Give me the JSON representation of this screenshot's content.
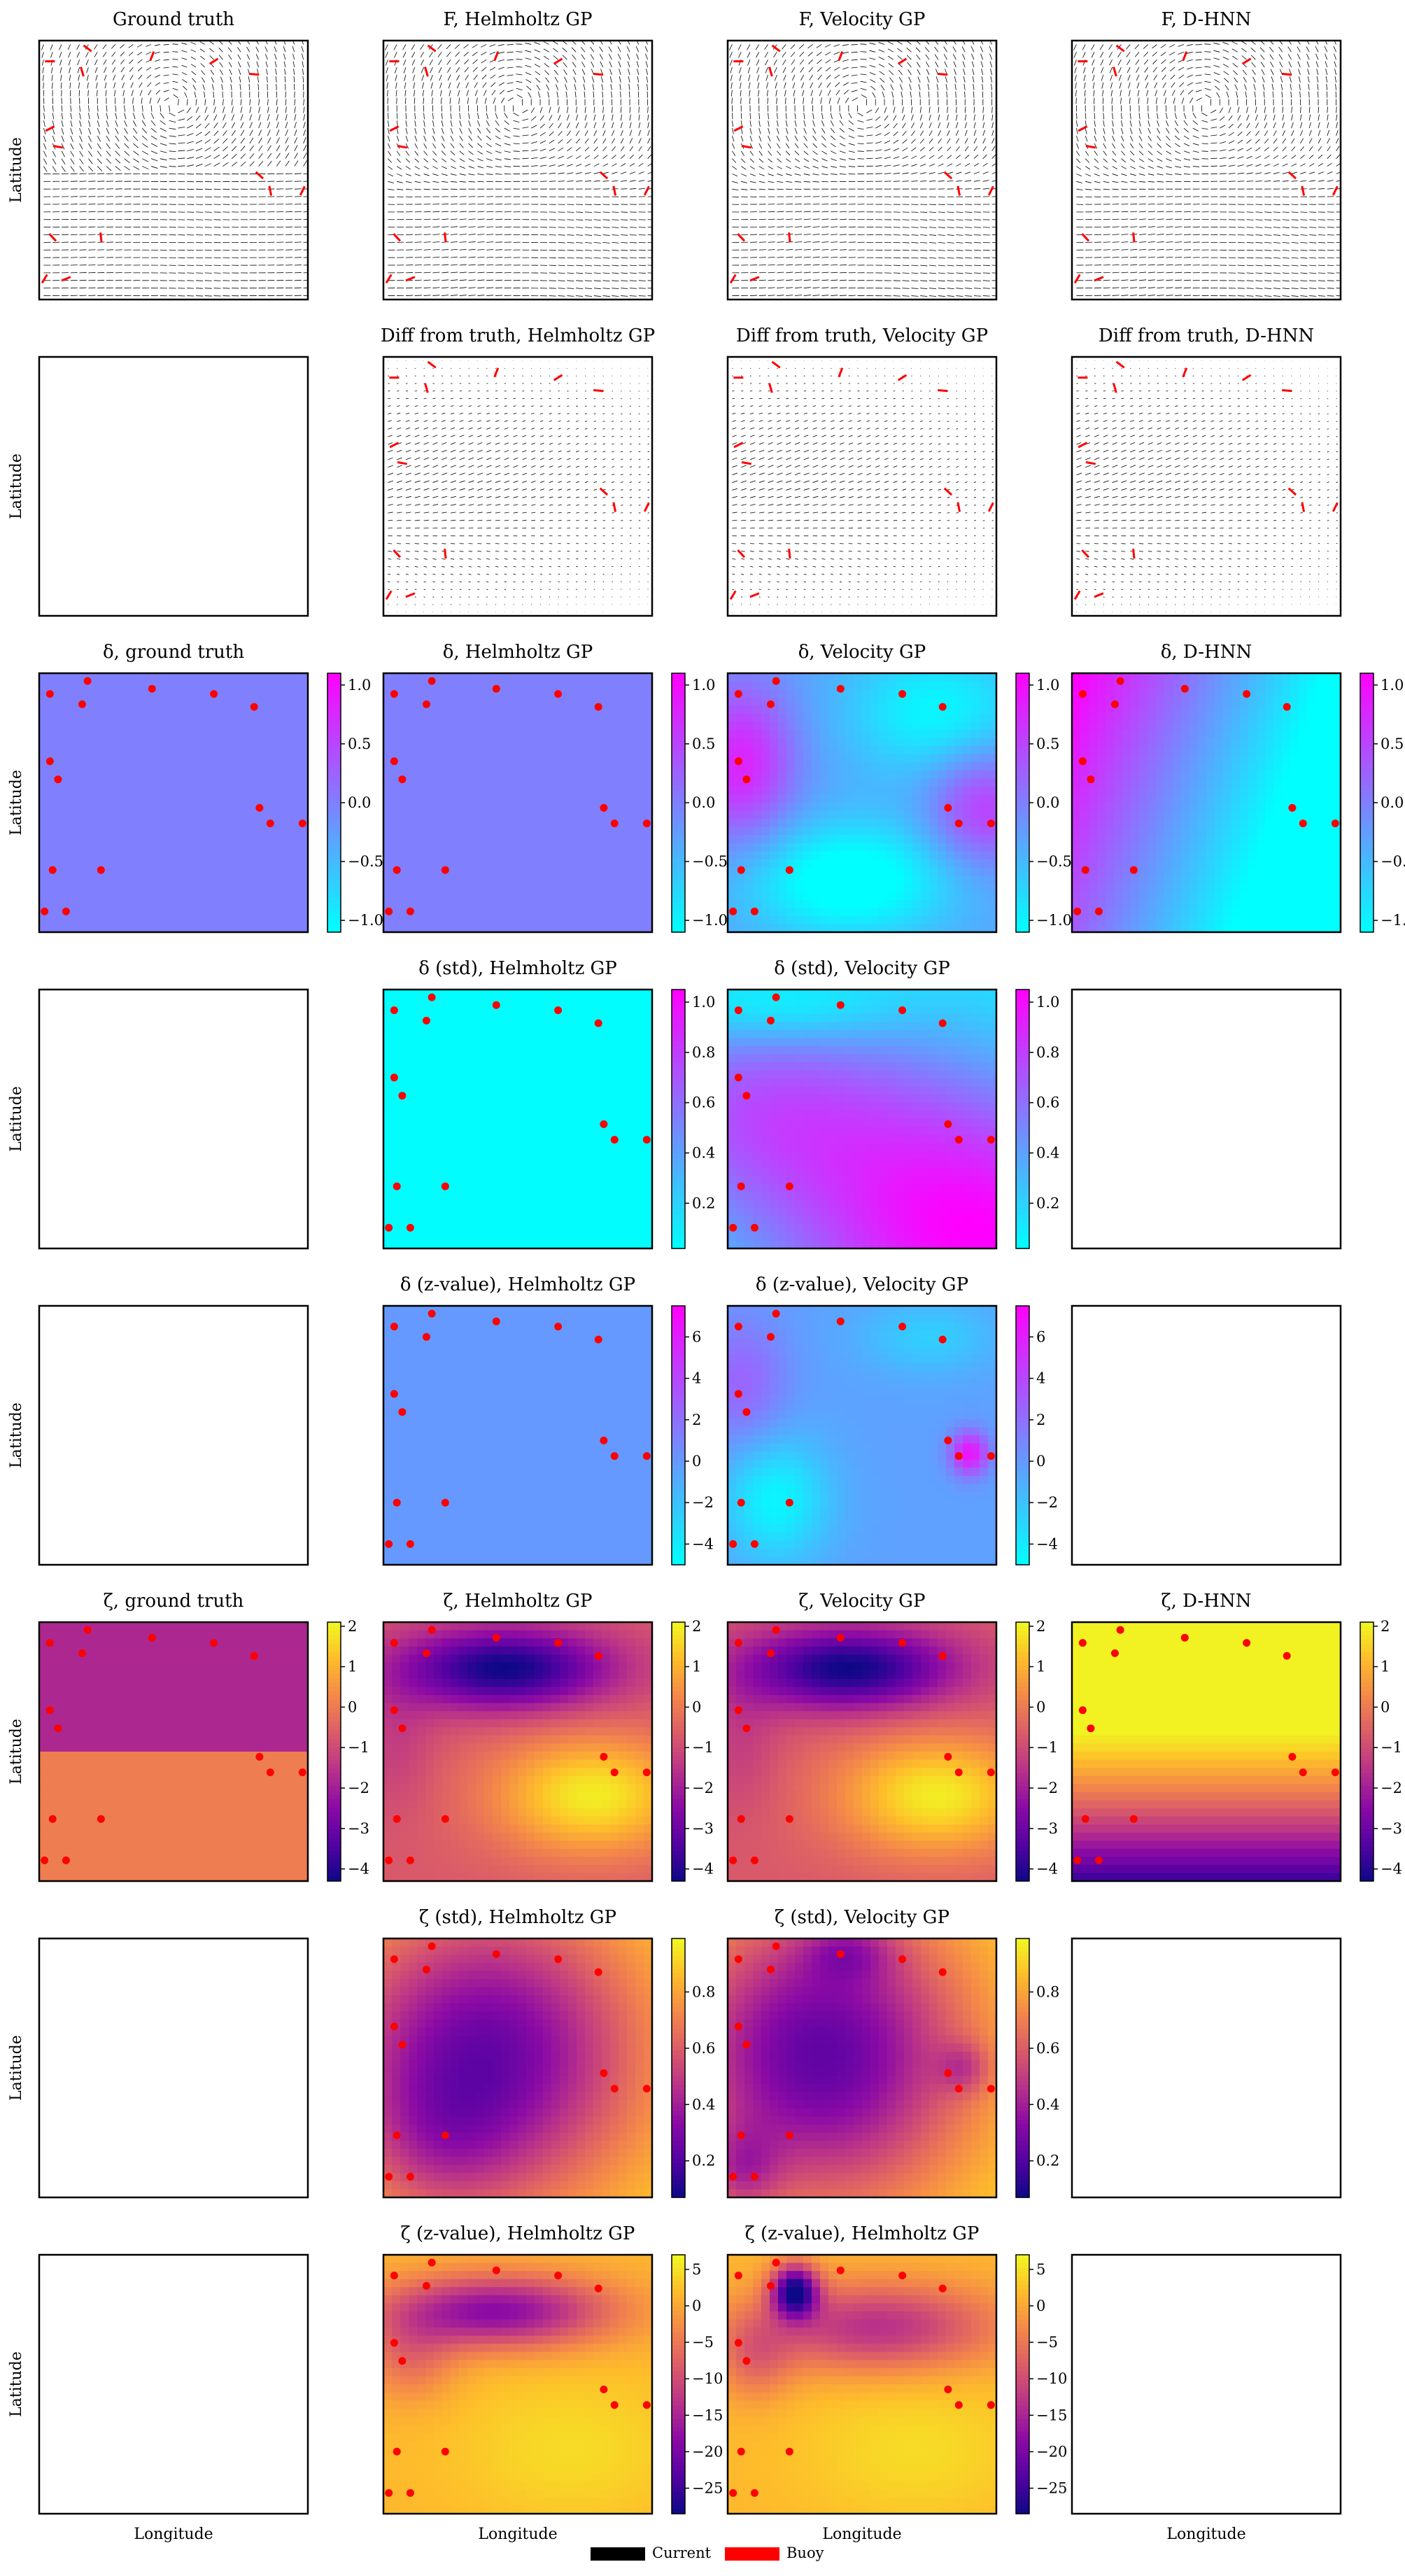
{
  "figure": {
    "legend": [
      {
        "label": "Current",
        "color": "#000000"
      },
      {
        "label": "Buoy",
        "color": "#ff0000"
      }
    ],
    "ylabel": "Latitude",
    "xlabel": "Longitude",
    "colors": {
      "current": "#000000",
      "buoy": "#ff0000",
      "cool_low": "#00ffff",
      "cool_high": "#ff00ff",
      "plasma_low": "#0d0887",
      "plasma_high": "#f0f921"
    }
  },
  "chart_data": {
    "type": "heatmap",
    "grid_layout": {
      "rows": 8,
      "cols": 4
    },
    "buoys": [
      [
        0.04,
        0.92
      ],
      [
        0.18,
        0.97
      ],
      [
        0.16,
        0.88
      ],
      [
        0.42,
        0.94
      ],
      [
        0.65,
        0.92
      ],
      [
        0.8,
        0.87
      ],
      [
        0.82,
        0.48
      ],
      [
        0.86,
        0.42
      ],
      [
        0.98,
        0.42
      ],
      [
        0.04,
        0.66
      ],
      [
        0.07,
        0.59
      ],
      [
        0.05,
        0.24
      ],
      [
        0.23,
        0.24
      ],
      [
        0.02,
        0.08
      ],
      [
        0.1,
        0.08
      ]
    ],
    "panels": [
      {
        "row": 0,
        "col": 0,
        "title": "Ground truth",
        "kind": "quiver",
        "variant": "gt"
      },
      {
        "row": 0,
        "col": 1,
        "title": "F, Helmholtz GP",
        "kind": "quiver",
        "variant": "pred"
      },
      {
        "row": 0,
        "col": 2,
        "title": "F, Velocity GP",
        "kind": "quiver",
        "variant": "pred"
      },
      {
        "row": 0,
        "col": 3,
        "title": "F, D-HNN",
        "kind": "quiver",
        "variant": "pred"
      },
      {
        "row": 1,
        "col": 0,
        "title": "",
        "kind": "empty"
      },
      {
        "row": 1,
        "col": 1,
        "title": "Diff from truth, Helmholtz GP",
        "kind": "quiver",
        "variant": "diff"
      },
      {
        "row": 1,
        "col": 2,
        "title": "Diff from truth, Velocity GP",
        "kind": "quiver",
        "variant": "diff"
      },
      {
        "row": 1,
        "col": 3,
        "title": "Diff from truth, D-HNN",
        "kind": "quiver",
        "variant": "diff"
      },
      {
        "row": 2,
        "col": 0,
        "title": "δ, ground truth",
        "kind": "heatmap",
        "cmap": "cool",
        "field": "const",
        "const": 0.0,
        "vmin": -1.1,
        "vmax": 1.1,
        "ticks": [
          "1.0",
          "0.5",
          "0.0",
          "−0.5",
          "−1.0"
        ],
        "tick_values": [
          1.0,
          0.5,
          0.0,
          -0.5,
          -1.0
        ]
      },
      {
        "row": 2,
        "col": 1,
        "title": "δ, Helmholtz GP",
        "kind": "heatmap",
        "cmap": "cool",
        "field": "const",
        "const": 0.0,
        "vmin": -1.1,
        "vmax": 1.1,
        "ticks": [
          "1.0",
          "0.5",
          "0.0",
          "−0.5",
          "−1.0"
        ],
        "tick_values": [
          1.0,
          0.5,
          0.0,
          -0.5,
          -1.0
        ]
      },
      {
        "row": 2,
        "col": 2,
        "title": "δ, Velocity GP",
        "kind": "heatmap",
        "cmap": "cool",
        "field": "div_vel",
        "vmin": -1.1,
        "vmax": 1.1,
        "ticks": [
          "1.0",
          "0.5",
          "0.0",
          "−0.5",
          "−1.0"
        ],
        "tick_values": [
          1.0,
          0.5,
          0.0,
          -0.5,
          -1.0
        ]
      },
      {
        "row": 2,
        "col": 3,
        "title": "δ, D-HNN",
        "kind": "heatmap",
        "cmap": "cool",
        "field": "div_dhnn",
        "vmin": -1.1,
        "vmax": 1.1,
        "ticks": [
          "1.0",
          "0.5",
          "0.0",
          "−0.5",
          "−1.0"
        ],
        "tick_values": [
          1.0,
          0.5,
          0.0,
          -0.5,
          -1.0
        ]
      },
      {
        "row": 3,
        "col": 0,
        "title": "",
        "kind": "empty"
      },
      {
        "row": 3,
        "col": 1,
        "title": "δ (std), Helmholtz GP",
        "kind": "heatmap",
        "cmap": "cool",
        "field": "const",
        "const": 0.03,
        "vmin": 0.02,
        "vmax": 1.05,
        "ticks": [
          "1.0",
          "0.8",
          "0.6",
          "0.4",
          "0.2"
        ],
        "tick_values": [
          1.0,
          0.8,
          0.6,
          0.4,
          0.2
        ]
      },
      {
        "row": 3,
        "col": 2,
        "title": "δ (std), Velocity GP",
        "kind": "heatmap",
        "cmap": "cool",
        "field": "std_vel",
        "vmin": 0.02,
        "vmax": 1.05,
        "ticks": [
          "1.0",
          "0.8",
          "0.6",
          "0.4",
          "0.2"
        ],
        "tick_values": [
          1.0,
          0.8,
          0.6,
          0.4,
          0.2
        ]
      },
      {
        "row": 3,
        "col": 3,
        "title": "",
        "kind": "empty"
      },
      {
        "row": 4,
        "col": 0,
        "title": "",
        "kind": "empty"
      },
      {
        "row": 4,
        "col": 1,
        "title": "δ (z-value), Helmholtz GP",
        "kind": "heatmap",
        "cmap": "cool",
        "field": "const",
        "const": 0.0,
        "vmin": -5.0,
        "vmax": 7.5,
        "ticks": [
          "6",
          "4",
          "2",
          "0",
          "−2",
          "−4"
        ],
        "tick_values": [
          6,
          4,
          2,
          0,
          -2,
          -4
        ]
      },
      {
        "row": 4,
        "col": 2,
        "title": "δ (z-value), Velocity GP",
        "kind": "heatmap",
        "cmap": "cool",
        "field": "z_vel",
        "vmin": -5.0,
        "vmax": 7.5,
        "ticks": [
          "6",
          "4",
          "2",
          "0",
          "−2",
          "−4"
        ],
        "tick_values": [
          6,
          4,
          2,
          0,
          -2,
          -4
        ]
      },
      {
        "row": 4,
        "col": 3,
        "title": "",
        "kind": "empty"
      },
      {
        "row": 5,
        "col": 0,
        "title": "ζ, ground truth",
        "kind": "heatmap",
        "cmap": "plasma",
        "field": "vort_gt",
        "vmin": -4.3,
        "vmax": 2.1,
        "ticks": [
          "2",
          "1",
          "0",
          "−1",
          "−2",
          "−3",
          "−4"
        ],
        "tick_values": [
          2,
          1,
          0,
          -1,
          -2,
          -3,
          -4
        ]
      },
      {
        "row": 5,
        "col": 1,
        "title": "ζ, Helmholtz GP",
        "kind": "heatmap",
        "cmap": "plasma",
        "field": "vort_pred",
        "vmin": -4.3,
        "vmax": 2.1,
        "ticks": [
          "2",
          "1",
          "0",
          "−1",
          "−2",
          "−3",
          "−4"
        ],
        "tick_values": [
          2,
          1,
          0,
          -1,
          -2,
          -3,
          -4
        ]
      },
      {
        "row": 5,
        "col": 2,
        "title": "ζ, Velocity GP",
        "kind": "heatmap",
        "cmap": "plasma",
        "field": "vort_pred",
        "vmin": -4.3,
        "vmax": 2.1,
        "ticks": [
          "2",
          "1",
          "0",
          "−1",
          "−2",
          "−3",
          "−4"
        ],
        "tick_values": [
          2,
          1,
          0,
          -1,
          -2,
          -3,
          -4
        ]
      },
      {
        "row": 5,
        "col": 3,
        "title": "ζ, D-HNN",
        "kind": "heatmap",
        "cmap": "plasma",
        "field": "vort_dhnn",
        "vmin": -4.3,
        "vmax": 2.1,
        "ticks": [
          "2",
          "1",
          "0",
          "−1",
          "−2",
          "−3",
          "−4"
        ],
        "tick_values": [
          2,
          1,
          0,
          -1,
          -2,
          -3,
          -4
        ]
      },
      {
        "row": 6,
        "col": 0,
        "title": "",
        "kind": "empty"
      },
      {
        "row": 6,
        "col": 1,
        "title": "ζ (std), Helmholtz GP",
        "kind": "heatmap",
        "cmap": "plasma",
        "field": "vstd_h",
        "vmin": 0.07,
        "vmax": 0.99,
        "ticks": [
          "0.8",
          "0.6",
          "0.4",
          "0.2"
        ],
        "tick_values": [
          0.8,
          0.6,
          0.4,
          0.2
        ]
      },
      {
        "row": 6,
        "col": 2,
        "title": "ζ (std), Velocity GP",
        "kind": "heatmap",
        "cmap": "plasma",
        "field": "vstd_v",
        "vmin": 0.07,
        "vmax": 0.99,
        "ticks": [
          "0.8",
          "0.6",
          "0.4",
          "0.2"
        ],
        "tick_values": [
          0.8,
          0.6,
          0.4,
          0.2
        ]
      },
      {
        "row": 6,
        "col": 3,
        "title": "",
        "kind": "empty"
      },
      {
        "row": 7,
        "col": 0,
        "title": "",
        "kind": "empty"
      },
      {
        "row": 7,
        "col": 1,
        "title": "ζ (z-value), Helmholtz GP",
        "kind": "heatmap",
        "cmap": "plasma",
        "field": "vz_h",
        "vmin": -28.5,
        "vmax": 7.0,
        "ticks": [
          "5",
          "0",
          "−5",
          "−10",
          "−15",
          "−20",
          "−25"
        ],
        "tick_values": [
          5,
          0,
          -5,
          -10,
          -15,
          -20,
          -25
        ]
      },
      {
        "row": 7,
        "col": 2,
        "title": "ζ (z-value), Helmholtz GP",
        "kind": "heatmap",
        "cmap": "plasma",
        "field": "vz_v",
        "vmin": -28.5,
        "vmax": 7.0,
        "ticks": [
          "5",
          "0",
          "−5",
          "−10",
          "−15",
          "−20",
          "−25"
        ],
        "tick_values": [
          5,
          0,
          -5,
          -10,
          -15,
          -20,
          -25
        ]
      },
      {
        "row": 7,
        "col": 3,
        "title": "",
        "kind": "empty"
      }
    ]
  }
}
